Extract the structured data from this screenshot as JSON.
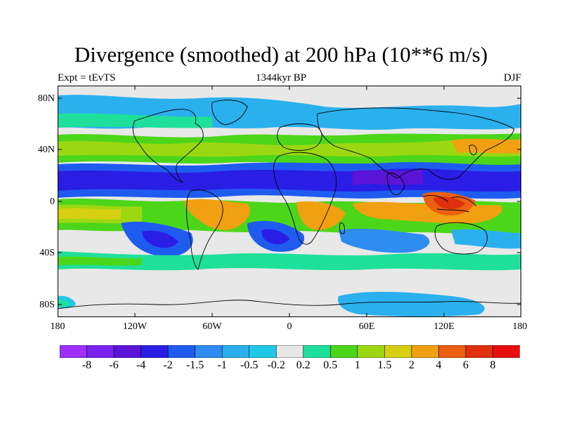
{
  "title": "Divergence (smoothed) at 200 hPa (10**6 m/s)",
  "subtitle_left": "Expt = tEvTS",
  "subtitle_center": "1344kyr BP",
  "subtitle_right": "DJF",
  "y_ticks": [
    "80N",
    "40N",
    "0",
    "40S",
    "80S"
  ],
  "x_ticks": [
    "180",
    "120W",
    "60W",
    "0",
    "60E",
    "120E",
    "180"
  ],
  "colorbar": {
    "labels": [
      "-8",
      "-6",
      "-4",
      "-2",
      "-1.5",
      "-1",
      "-0.5",
      "-0.2",
      "0.2",
      "0.5",
      "1",
      "1.5",
      "2",
      "4",
      "6",
      "8"
    ],
    "colors": [
      "#9f30ff",
      "#7a20f0",
      "#5a14d8",
      "#2a1ee6",
      "#1e5cf0",
      "#2f8cf0",
      "#2bb0ee",
      "#20c8e8",
      "#e8e8e8",
      "#1ee09a",
      "#4cd61a",
      "#9cd812",
      "#d6d010",
      "#f0a010",
      "#ea6010",
      "#e03010",
      "#e80e0e"
    ]
  },
  "colors": {
    "strong_convergence": "#2a1ee6",
    "convergence": "#1e5cf0",
    "weak_convergence": "#2bb0ee",
    "neutral": "#e8e8e8",
    "weak_divergence": "#1ee09a",
    "divergence": "#9cd812",
    "strong_divergence": "#ea6010",
    "coast": "#000000"
  }
}
